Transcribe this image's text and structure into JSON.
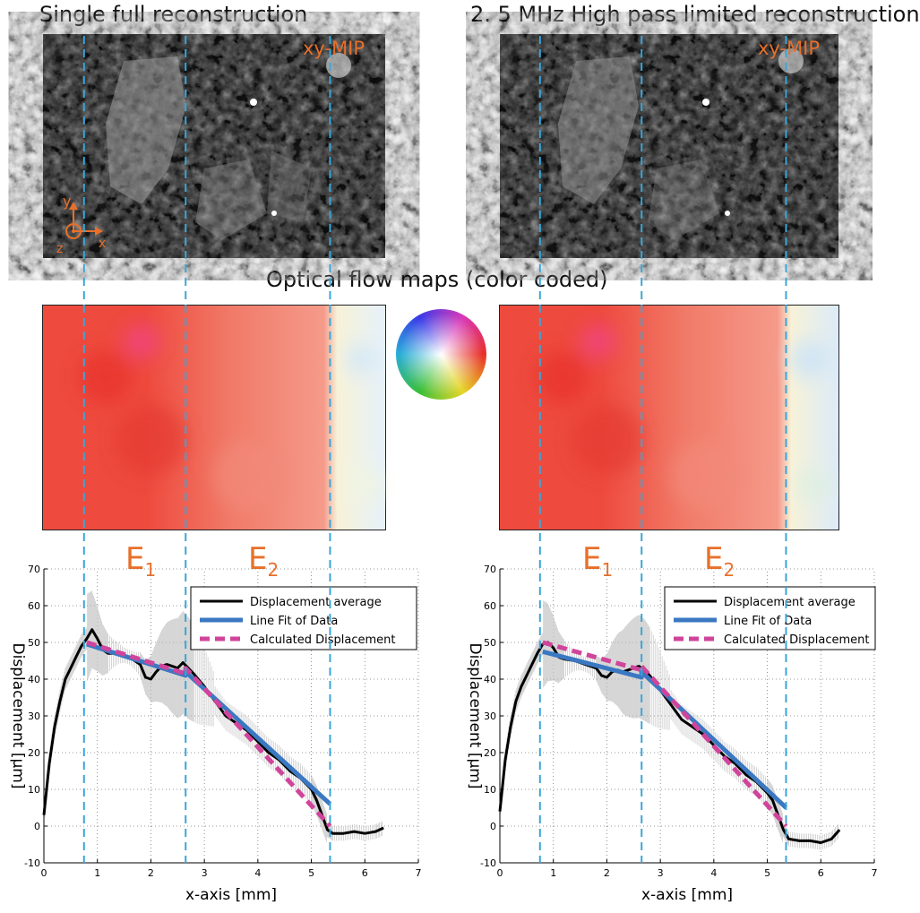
{
  "colors": {
    "accent": "#e8702a",
    "guide": "#3aa6d8",
    "fit": "#3a78c2",
    "calc": "#d0449b",
    "avg": "#000000"
  },
  "titles": {
    "left": "Single full reconstruction",
    "right": "2. 5 MHz High pass limited reconstruction",
    "middle": "Optical flow maps (color coded)"
  },
  "mip_label": "xy-MIP",
  "axes_triad": {
    "x": "x",
    "y": "y",
    "z": "z"
  },
  "elasticity_labels": [
    {
      "base": "E",
      "sub": "1"
    },
    {
      "base": "E",
      "sub": "2"
    }
  ],
  "chart_data": [
    {
      "type": "line",
      "xlabel": "x-axis [mm]",
      "ylabel": "Displacement [µm]",
      "xlim": [
        0,
        7
      ],
      "ylim": [
        -10,
        70
      ],
      "xticks": [
        0,
        1,
        2,
        3,
        4,
        5,
        6,
        7
      ],
      "yticks": [
        -10,
        0,
        10,
        20,
        30,
        40,
        50,
        60,
        70
      ],
      "grid": true,
      "legend_position": "top-right",
      "guide_lines_x": [
        0.75,
        2.65,
        5.35
      ],
      "series": [
        {
          "name": "Displacement average",
          "x": [
            0,
            0.1,
            0.2,
            0.3,
            0.4,
            0.5,
            0.6,
            0.7,
            0.8,
            0.9,
            1.0,
            1.1,
            1.2,
            1.4,
            1.6,
            1.8,
            1.9,
            2.0,
            2.1,
            2.2,
            2.3,
            2.4,
            2.5,
            2.6,
            2.7,
            2.8,
            3.0,
            3.2,
            3.4,
            3.6,
            3.8,
            4.0,
            4.2,
            4.4,
            4.6,
            4.8,
            5.0,
            5.1,
            5.2,
            5.3,
            5.4,
            5.6,
            5.8,
            6.0,
            6.2,
            6.35
          ],
          "y": [
            3,
            17,
            27,
            34,
            40,
            43,
            46,
            49,
            51,
            53.5,
            51,
            48,
            47,
            47,
            46,
            44,
            40.5,
            40,
            42,
            43.5,
            44,
            43.5,
            43,
            44.5,
            43,
            41.5,
            38,
            34,
            30,
            28,
            26,
            23,
            20,
            18,
            15,
            13,
            10,
            7,
            3,
            -1,
            -2,
            -2,
            -1.5,
            -2,
            -1.5,
            -0.5
          ]
        },
        {
          "name": "Line Fit of Data",
          "x": [
            0.8,
            2.65,
            2.65,
            5.35
          ],
          "y": [
            49.5,
            41,
            42,
            6
          ]
        },
        {
          "name": "Calculated Displacement",
          "x": [
            0.8,
            2.65,
            2.65,
            5.35
          ],
          "y": [
            50,
            41.5,
            43,
            0
          ]
        }
      ]
    },
    {
      "type": "line",
      "xlabel": "x-axis [mm]",
      "ylabel": "Displacement [µm]",
      "xlim": [
        0,
        7
      ],
      "ylim": [
        -10,
        70
      ],
      "xticks": [
        0,
        1,
        2,
        3,
        4,
        5,
        6,
        7
      ],
      "yticks": [
        -10,
        0,
        10,
        20,
        30,
        40,
        50,
        60,
        70
      ],
      "grid": true,
      "legend_position": "top-right",
      "guide_lines_x": [
        0.75,
        2.65,
        5.35
      ],
      "series": [
        {
          "name": "Displacement average",
          "x": [
            0,
            0.1,
            0.2,
            0.3,
            0.4,
            0.5,
            0.6,
            0.7,
            0.8,
            0.9,
            1.0,
            1.1,
            1.2,
            1.4,
            1.6,
            1.8,
            1.9,
            2.0,
            2.1,
            2.2,
            2.3,
            2.4,
            2.5,
            2.6,
            2.7,
            2.8,
            3.0,
            3.2,
            3.4,
            3.6,
            3.8,
            4.0,
            4.2,
            4.4,
            4.6,
            4.8,
            5.0,
            5.1,
            5.2,
            5.3,
            5.4,
            5.6,
            5.8,
            6.0,
            6.2,
            6.35
          ],
          "y": [
            4,
            18,
            27,
            34,
            38,
            41,
            44,
            47,
            49.5,
            50,
            48.5,
            46,
            45.5,
            45,
            44,
            43,
            41,
            40.5,
            42,
            42.5,
            42,
            42.5,
            43,
            43.5,
            42.5,
            41,
            37,
            33,
            29,
            27,
            25,
            22,
            19,
            17,
            14,
            12,
            9,
            7,
            3,
            -1,
            -3.5,
            -4,
            -4,
            -4.5,
            -3.5,
            -1
          ]
        },
        {
          "name": "Line Fit of Data",
          "x": [
            0.8,
            2.65,
            2.65,
            5.35
          ],
          "y": [
            47.5,
            40.5,
            42,
            5
          ]
        },
        {
          "name": "Calculated Displacement",
          "x": [
            0.8,
            2.65,
            2.65,
            5.35
          ],
          "y": [
            50,
            42.5,
            43.5,
            0
          ]
        }
      ]
    }
  ]
}
